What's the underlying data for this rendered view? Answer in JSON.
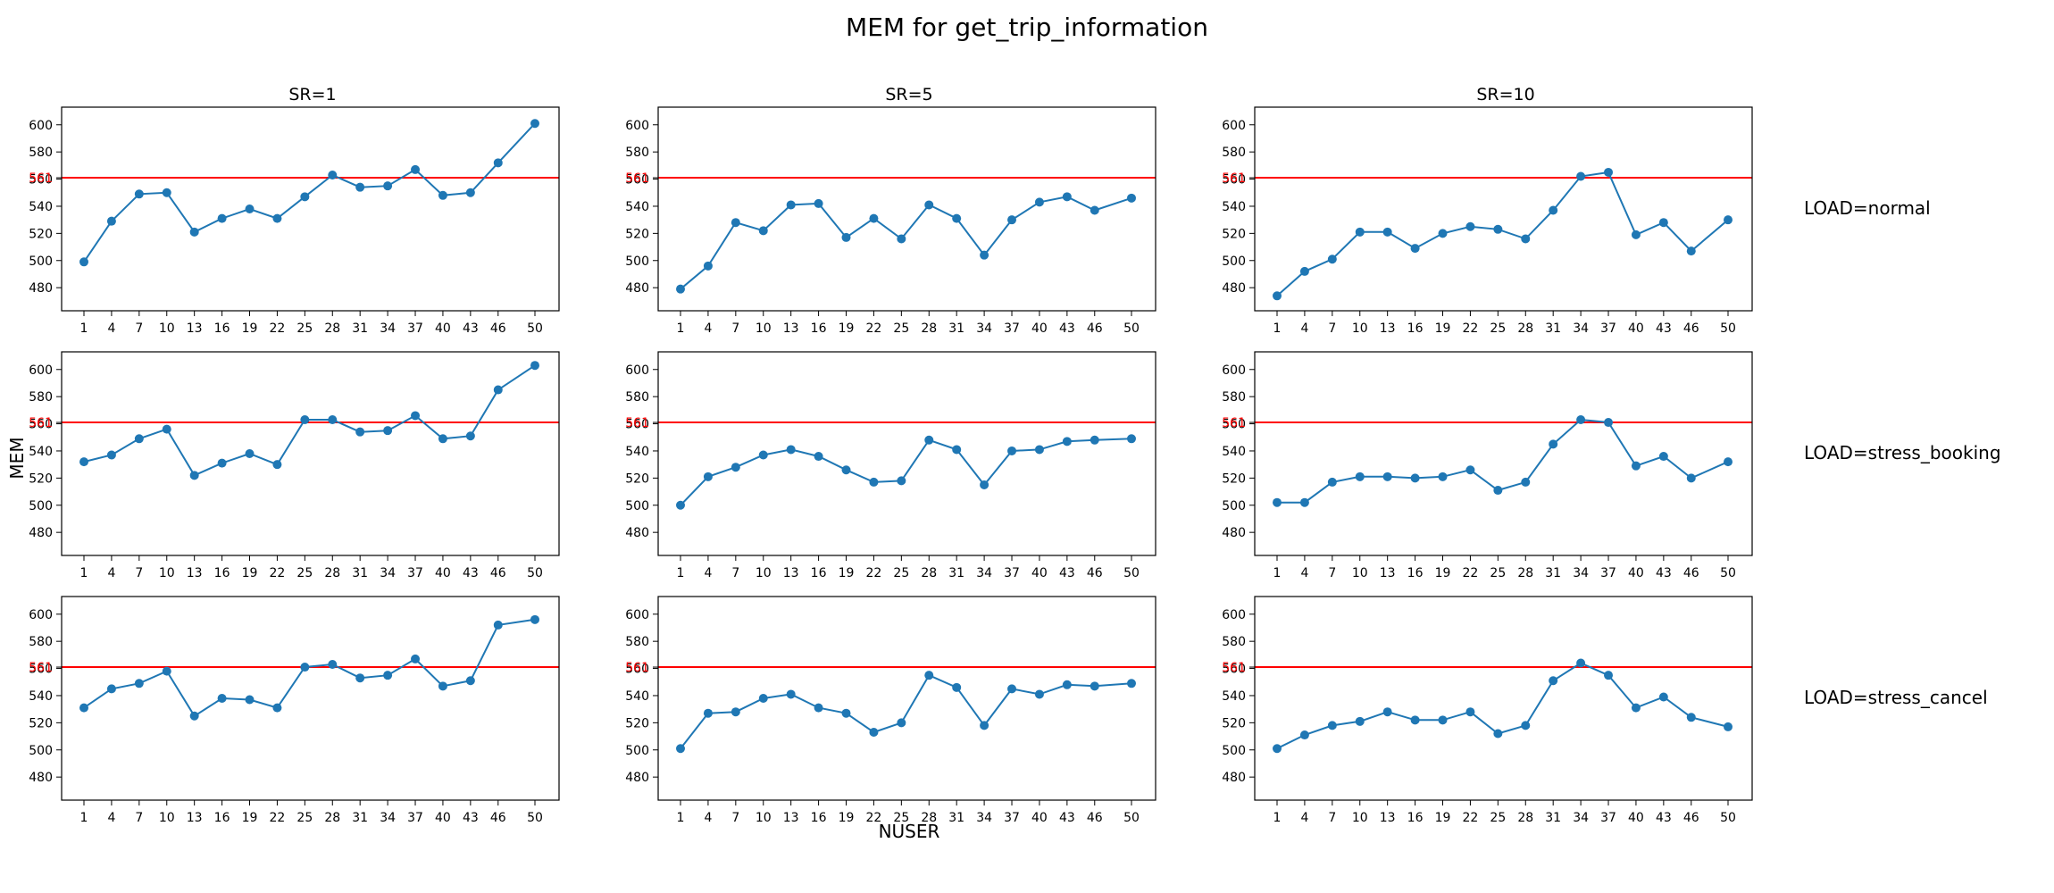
{
  "figure": {
    "title": "MEM for get_trip_information",
    "xlabel": "NUSER",
    "ylabel": "MEM",
    "threshold_label": "561",
    "colors": {
      "line": "#1f77b4",
      "threshold": "#ff0000",
      "axes": "#000000",
      "threshold_tick": "#ff0000"
    }
  },
  "columns": [
    "SR=1",
    "SR=5",
    "SR=10"
  ],
  "rows": [
    "LOAD=normal",
    "LOAD=stress_booking",
    "LOAD=stress_cancel"
  ],
  "chart_data": {
    "type": "line",
    "layout": "3x3 grid of line charts (rows: LOAD, columns: SR)",
    "x": [
      1,
      4,
      7,
      10,
      13,
      16,
      19,
      22,
      25,
      28,
      31,
      34,
      37,
      40,
      43,
      46,
      50
    ],
    "x_tick_labels": [
      "1",
      "4",
      "7",
      "10",
      "13",
      "16",
      "19",
      "22",
      "25",
      "28",
      "31",
      "34",
      "37",
      "40",
      "43",
      "46",
      "50"
    ],
    "ylim": [
      463,
      613
    ],
    "y_ticks": [
      480,
      500,
      520,
      540,
      560,
      580,
      600
    ],
    "threshold": 561,
    "marker": "circle",
    "grid": false,
    "panels": [
      {
        "row": "LOAD=normal",
        "col": "SR=1",
        "values": [
          499,
          529,
          549,
          550,
          521,
          531,
          538,
          531,
          547,
          563,
          554,
          555,
          567,
          548,
          550,
          572,
          601
        ]
      },
      {
        "row": "LOAD=normal",
        "col": "SR=5",
        "values": [
          479,
          496,
          528,
          522,
          541,
          542,
          517,
          531,
          516,
          541,
          531,
          504,
          530,
          543,
          547,
          537,
          546
        ]
      },
      {
        "row": "LOAD=normal",
        "col": "SR=10",
        "values": [
          474,
          492,
          501,
          521,
          521,
          509,
          520,
          525,
          523,
          516,
          537,
          562,
          565,
          519,
          528,
          507,
          530
        ]
      },
      {
        "row": "LOAD=stress_booking",
        "col": "SR=1",
        "values": [
          532,
          537,
          549,
          556,
          522,
          531,
          538,
          530,
          563,
          563,
          554,
          555,
          566,
          549,
          551,
          585,
          603
        ]
      },
      {
        "row": "LOAD=stress_booking",
        "col": "SR=5",
        "values": [
          500,
          521,
          528,
          537,
          541,
          536,
          526,
          517,
          518,
          548,
          541,
          515,
          540,
          541,
          547,
          548,
          549
        ]
      },
      {
        "row": "LOAD=stress_booking",
        "col": "SR=10",
        "values": [
          502,
          502,
          517,
          521,
          521,
          520,
          521,
          526,
          511,
          517,
          545,
          563,
          561,
          529,
          536,
          520,
          532
        ]
      },
      {
        "row": "LOAD=stress_cancel",
        "col": "SR=1",
        "values": [
          531,
          545,
          549,
          558,
          525,
          538,
          537,
          531,
          561,
          563,
          553,
          555,
          567,
          547,
          551,
          592,
          596
        ]
      },
      {
        "row": "LOAD=stress_cancel",
        "col": "SR=5",
        "values": [
          501,
          527,
          528,
          538,
          541,
          531,
          527,
          513,
          520,
          555,
          546,
          518,
          545,
          541,
          548,
          547,
          549
        ]
      },
      {
        "row": "LOAD=stress_cancel",
        "col": "SR=10",
        "values": [
          501,
          511,
          518,
          521,
          528,
          522,
          522,
          528,
          512,
          518,
          551,
          564,
          555,
          531,
          539,
          524,
          517
        ]
      }
    ]
  }
}
